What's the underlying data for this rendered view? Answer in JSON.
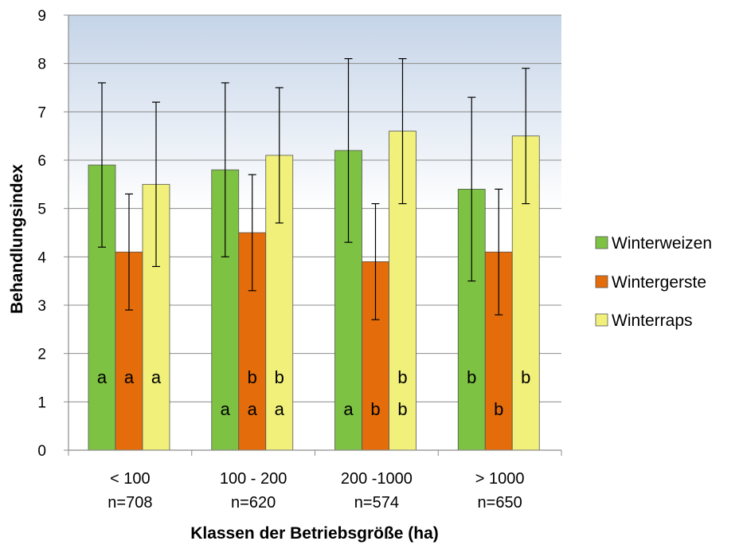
{
  "chart_data": {
    "type": "bar",
    "xlabel": "Klassen der Betriebsgröße (ha)",
    "ylabel": "Behandlungsindex",
    "ylim": [
      0,
      9
    ],
    "yticks": [
      0,
      1,
      2,
      3,
      4,
      5,
      6,
      7,
      8,
      9
    ],
    "grid": true,
    "legend_position": "right",
    "categories": [
      {
        "label": "< 100",
        "n": "n=708"
      },
      {
        "label": "100 - 200",
        "n": "n=620"
      },
      {
        "label": "200 -1000",
        "n": "n=574"
      },
      {
        "label": "> 1000",
        "n": "n=650"
      }
    ],
    "series": [
      {
        "name": "Winterweizen",
        "color": "#7dc242",
        "values": [
          5.9,
          5.8,
          6.2,
          5.4
        ],
        "error_high": [
          7.6,
          7.6,
          8.1,
          7.3
        ],
        "error_low": [
          4.2,
          4.0,
          4.3,
          3.5
        ],
        "letters": [
          [
            "a"
          ],
          [
            "a"
          ],
          [
            "a"
          ],
          [
            "b"
          ]
        ]
      },
      {
        "name": "Wintergerste",
        "color": "#e46c0a",
        "values": [
          4.1,
          4.5,
          3.9,
          4.1
        ],
        "error_high": [
          5.3,
          5.7,
          5.1,
          5.4
        ],
        "error_low": [
          2.9,
          3.3,
          2.7,
          2.8
        ],
        "letters": [
          [
            "a"
          ],
          [
            "b",
            "a"
          ],
          [
            "b"
          ],
          [
            "b"
          ]
        ]
      },
      {
        "name": "Winterraps",
        "color": "#f0f07a",
        "values": [
          5.5,
          6.1,
          6.6,
          6.5
        ],
        "error_high": [
          7.2,
          7.5,
          8.1,
          7.9
        ],
        "error_low": [
          3.8,
          4.7,
          5.1,
          5.1
        ],
        "letters": [
          [
            "a"
          ],
          [
            "b",
            "a"
          ],
          [
            "b",
            "b"
          ],
          [
            "b"
          ]
        ]
      }
    ]
  }
}
